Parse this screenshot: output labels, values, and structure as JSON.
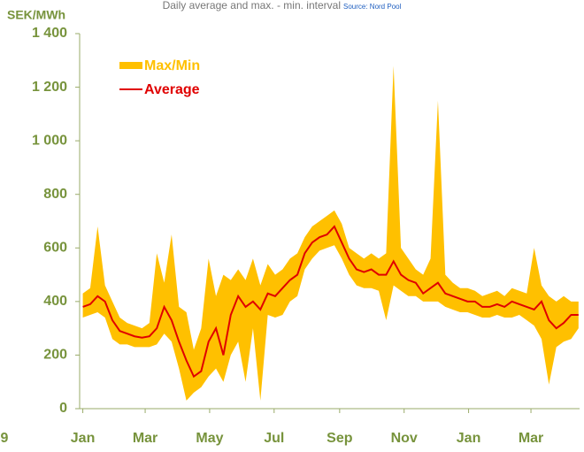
{
  "chart_data": {
    "type": "band_line",
    "title": "Daily average and max. - min. interval",
    "source": "Source: Nord Pool",
    "y_label": "SEK/MWh",
    "x_fragment": "9",
    "x": [
      0,
      7,
      14,
      21,
      28,
      35,
      42,
      49,
      56,
      63,
      70,
      77,
      84,
      91,
      98,
      105,
      112,
      119,
      126,
      133,
      140,
      147,
      154,
      161,
      168,
      175,
      182,
      189,
      196,
      203,
      210,
      217,
      224,
      231,
      238,
      245,
      252,
      259,
      266,
      273,
      280,
      287,
      294,
      301,
      308,
      315,
      322,
      329,
      336,
      343,
      350,
      357,
      364,
      371,
      378,
      385,
      392,
      399,
      406,
      413,
      420,
      427,
      434,
      441,
      448,
      455,
      462,
      469
    ],
    "series": [
      {
        "name": "Max/Min",
        "color": "#ffc000",
        "max": [
          430,
          450,
          680,
          460,
          400,
          340,
          320,
          310,
          300,
          320,
          580,
          470,
          650,
          380,
          360,
          220,
          300,
          560,
          420,
          500,
          480,
          520,
          480,
          560,
          460,
          540,
          500,
          520,
          560,
          580,
          640,
          680,
          700,
          720,
          740,
          690,
          600,
          580,
          560,
          580,
          560,
          580,
          1280,
          600,
          560,
          520,
          500,
          560,
          1150,
          500,
          470,
          450,
          450,
          440,
          420,
          430,
          440,
          420,
          450,
          440,
          430,
          600,
          460,
          420,
          400,
          420,
          400,
          400
        ],
        "min": [
          340,
          350,
          360,
          340,
          260,
          240,
          240,
          230,
          230,
          230,
          240,
          280,
          250,
          150,
          30,
          60,
          80,
          120,
          150,
          100,
          200,
          250,
          100,
          300,
          30,
          350,
          340,
          350,
          400,
          420,
          520,
          560,
          590,
          600,
          610,
          560,
          500,
          460,
          450,
          450,
          440,
          330,
          460,
          440,
          420,
          420,
          400,
          400,
          400,
          380,
          370,
          360,
          360,
          350,
          340,
          340,
          350,
          340,
          340,
          350,
          330,
          310,
          260,
          90,
          230,
          250,
          260,
          300
        ]
      },
      {
        "name": "Average",
        "color": "#e00000",
        "values": [
          380,
          390,
          420,
          400,
          330,
          290,
          280,
          270,
          265,
          270,
          300,
          380,
          330,
          250,
          180,
          120,
          140,
          250,
          300,
          200,
          350,
          420,
          380,
          400,
          370,
          430,
          420,
          450,
          480,
          500,
          580,
          620,
          640,
          650,
          680,
          620,
          560,
          520,
          510,
          520,
          500,
          500,
          550,
          500,
          480,
          470,
          430,
          450,
          470,
          430,
          420,
          410,
          400,
          400,
          380,
          380,
          390,
          380,
          400,
          390,
          380,
          370,
          400,
          330,
          300,
          320,
          350,
          350
        ]
      }
    ],
    "xlim": [
      -3,
      470
    ],
    "xticks": [
      {
        "value": 0,
        "label": "Jan"
      },
      {
        "value": 59,
        "label": "Mar"
      },
      {
        "value": 120,
        "label": "May"
      },
      {
        "value": 181,
        "label": "Jul"
      },
      {
        "value": 243,
        "label": "Sep"
      },
      {
        "value": 304,
        "label": "Nov"
      },
      {
        "value": 365,
        "label": "Jan"
      },
      {
        "value": 424,
        "label": "Mar"
      }
    ],
    "ylim": [
      0,
      1400
    ],
    "yticks": [
      0,
      200,
      400,
      600,
      800,
      {
        "value": 1000,
        "label": "1 000"
      },
      {
        "value": 1200,
        "label": "1 200"
      },
      {
        "value": 1400,
        "label": "1 400"
      }
    ],
    "legend": "upper left"
  }
}
